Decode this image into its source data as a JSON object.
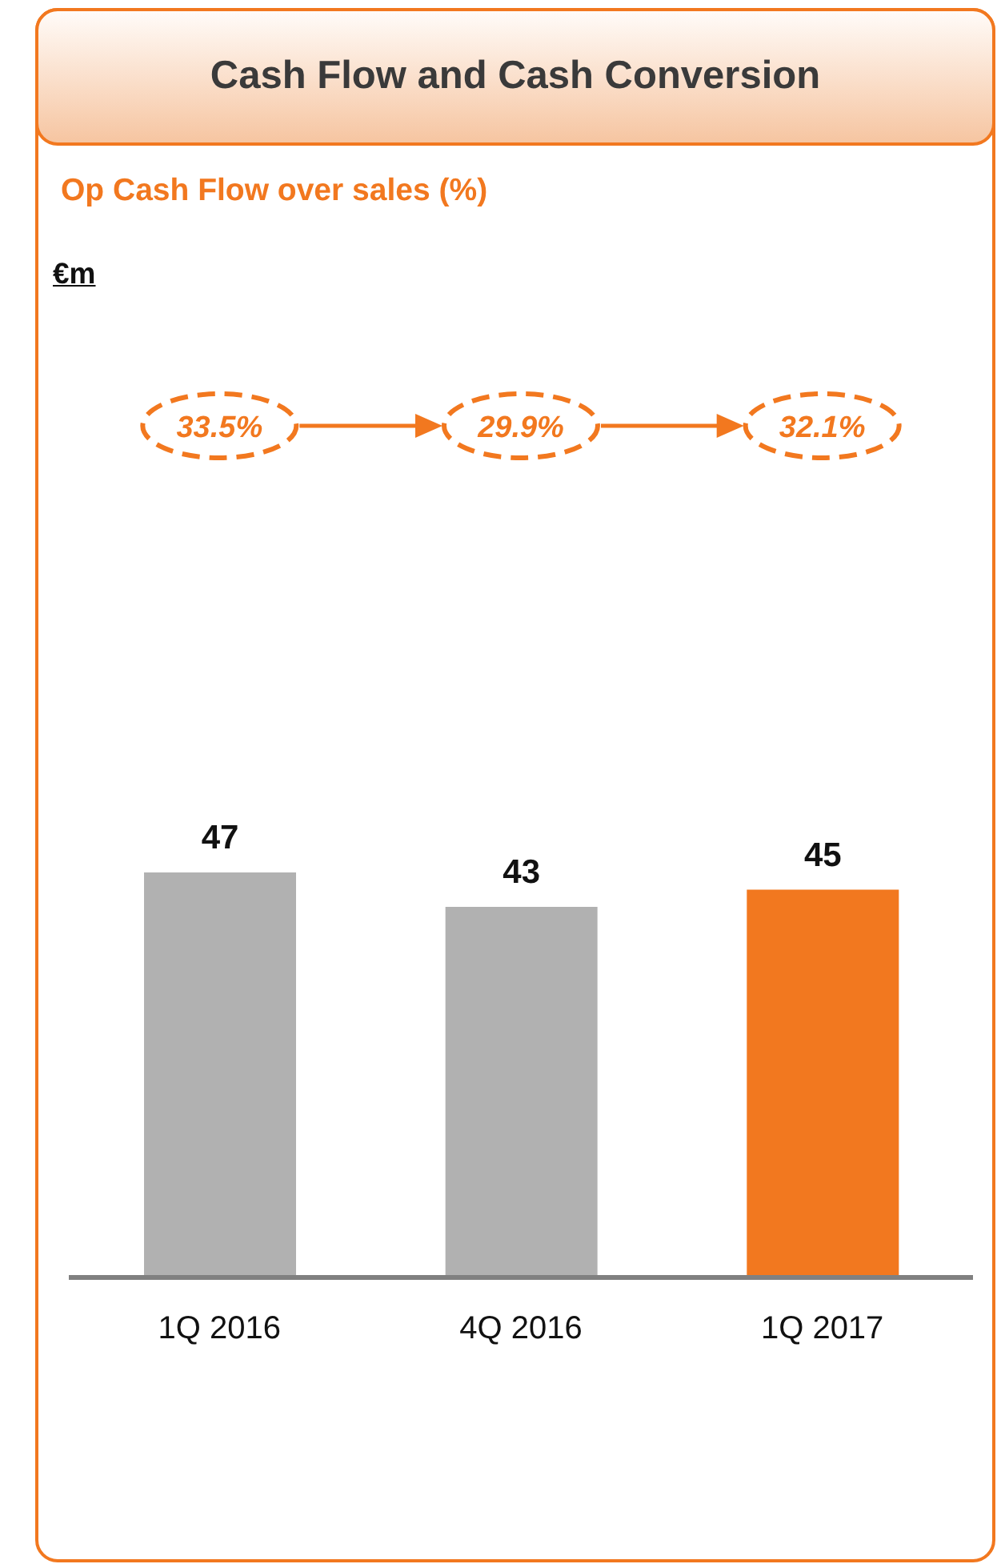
{
  "chart_data": {
    "type": "bar",
    "title": "Cash Flow and Cash Conversion",
    "subtitle": "Op Cash Flow over sales (%)",
    "annotations": [
      "€m",
      "33.5%",
      "29.9%",
      "32.1%"
    ],
    "categories": [
      "1Q 2016",
      "4Q 2016",
      "1Q 2017"
    ],
    "values": [
      47,
      43,
      45
    ],
    "colors": [
      "#b1b1b1",
      "#b1b1b1",
      "#f2781f"
    ],
    "data_labels": true,
    "tick_labels": "x"
  }
}
